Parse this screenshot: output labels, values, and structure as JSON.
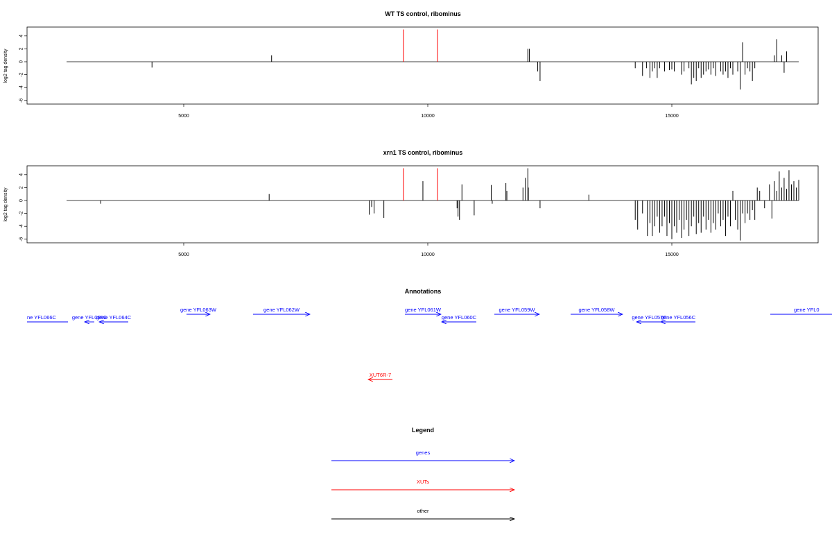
{
  "chart_data": [
    {
      "type": "bar",
      "title": "WT TS control, ribominus",
      "xlabel": "",
      "ylabel": "log2 tag density",
      "xlim": [
        2300,
        17500
      ],
      "ylim": [
        -6,
        5
      ],
      "x_ticks": [
        5000,
        10000,
        15000
      ],
      "x_tick_labels": [
        "5000",
        "10000",
        "15000"
      ],
      "y_ticks": [
        4,
        2,
        0,
        -2,
        -4,
        -6
      ],
      "y_tick_labels": [
        "4",
        "2",
        "0",
        "-2",
        "-4",
        "-6"
      ],
      "baseline": {
        "x_start": 2600,
        "x_end": 17600,
        "value": 0
      },
      "highlight_markers": [
        {
          "x": 9500,
          "value": 5,
          "color": "#ff0000"
        },
        {
          "x": 10200,
          "value": 5,
          "color": "#ff0000"
        }
      ],
      "series": [
        {
          "color": "#000000",
          "points": [
            [
              4350,
              -0.9
            ],
            [
              6800,
              1.0
            ],
            [
              12050,
              2.0
            ],
            [
              12080,
              2.0
            ],
            [
              12250,
              -1.5
            ],
            [
              12300,
              -3.0
            ],
            [
              14250,
              -1.0
            ],
            [
              14400,
              -2.2
            ],
            [
              14480,
              -1.0
            ],
            [
              14550,
              -2.5
            ],
            [
              14600,
              -1.5
            ],
            [
              14650,
              -1.0
            ],
            [
              14700,
              -2.5
            ],
            [
              14750,
              -1.0
            ],
            [
              14850,
              -1.5
            ],
            [
              14950,
              -1.3
            ],
            [
              15000,
              -1.2
            ],
            [
              15050,
              -1.5
            ],
            [
              15200,
              -2.0
            ],
            [
              15250,
              -1.5
            ],
            [
              15350,
              -1.0
            ],
            [
              15400,
              -3.5
            ],
            [
              15450,
              -2.5
            ],
            [
              15500,
              -3.0
            ],
            [
              15550,
              -1.0
            ],
            [
              15600,
              -2.5
            ],
            [
              15650,
              -2.0
            ],
            [
              15700,
              -1.5
            ],
            [
              15750,
              -1.2
            ],
            [
              15800,
              -2.0
            ],
            [
              15850,
              -1.0
            ],
            [
              15900,
              -2.2
            ],
            [
              16000,
              -1.5
            ],
            [
              16050,
              -2.0
            ],
            [
              16100,
              -1.5
            ],
            [
              16150,
              -2.5
            ],
            [
              16200,
              -1.0
            ],
            [
              16250,
              -2.0
            ],
            [
              16350,
              -1.5
            ],
            [
              16400,
              -4.3
            ],
            [
              16450,
              3.0
            ],
            [
              16500,
              -2.0
            ],
            [
              16550,
              -1.0
            ],
            [
              16600,
              -1.5
            ],
            [
              16650,
              -3.0
            ],
            [
              16700,
              -1.0
            ],
            [
              17100,
              1.0
            ],
            [
              17150,
              3.5
            ],
            [
              17250,
              1.0
            ],
            [
              17300,
              -1.7
            ],
            [
              17350,
              1.6
            ]
          ]
        }
      ]
    },
    {
      "type": "bar",
      "title": "xrn1 TS control, ribominus",
      "xlabel": "",
      "ylabel": "log2 tag density",
      "xlim": [
        2300,
        17500
      ],
      "ylim": [
        -6,
        5
      ],
      "x_ticks": [
        5000,
        10000,
        15000
      ],
      "x_tick_labels": [
        "5000",
        "10000",
        "15000"
      ],
      "y_ticks": [
        4,
        2,
        0,
        -2,
        -4,
        -6
      ],
      "y_tick_labels": [
        "4",
        "2",
        "0",
        "-2",
        "-4",
        "-6"
      ],
      "baseline": {
        "x_start": 2600,
        "x_end": 17600,
        "value": 0
      },
      "highlight_markers": [
        {
          "x": 9500,
          "value": 5,
          "color": "#ff0000"
        },
        {
          "x": 10200,
          "value": 5,
          "color": "#ff0000"
        }
      ],
      "series": [
        {
          "color": "#000000",
          "points": [
            [
              3300,
              -0.5
            ],
            [
              6750,
              1.0
            ],
            [
              8800,
              -2.2
            ],
            [
              8850,
              -1.0
            ],
            [
              8900,
              -2.0
            ],
            [
              9100,
              -2.7
            ],
            [
              9900,
              3.0
            ],
            [
              10600,
              -1.2
            ],
            [
              10620,
              -2.5
            ],
            [
              10650,
              -3.0
            ],
            [
              10700,
              2.5
            ],
            [
              10950,
              -2.3
            ],
            [
              11300,
              2.4
            ],
            [
              11320,
              -0.5
            ],
            [
              11600,
              2.7
            ],
            [
              11620,
              1.5
            ],
            [
              11950,
              2.0
            ],
            [
              12000,
              3.5
            ],
            [
              12050,
              5.0
            ],
            [
              12060,
              2.0
            ],
            [
              12300,
              -1.2
            ],
            [
              13300,
              0.9
            ],
            [
              14250,
              -3.0
            ],
            [
              14300,
              -4.5
            ],
            [
              14400,
              -2.0
            ],
            [
              14500,
              -5.5
            ],
            [
              14550,
              -3.5
            ],
            [
              14600,
              -5.5
            ],
            [
              14650,
              -4.0
            ],
            [
              14700,
              -2.5
            ],
            [
              14750,
              -5.0
            ],
            [
              14800,
              -4.0
            ],
            [
              14850,
              -2.5
            ],
            [
              14900,
              -5.5
            ],
            [
              14950,
              -3.5
            ],
            [
              15000,
              -6.0
            ],
            [
              15050,
              -4.0
            ],
            [
              15100,
              -5.0
            ],
            [
              15150,
              -3.0
            ],
            [
              15200,
              -5.8
            ],
            [
              15250,
              -4.5
            ],
            [
              15300,
              -3.0
            ],
            [
              15350,
              -5.5
            ],
            [
              15400,
              -4.0
            ],
            [
              15450,
              -2.5
            ],
            [
              15500,
              -5.2
            ],
            [
              15550,
              -3.5
            ],
            [
              15600,
              -5.0
            ],
            [
              15650,
              -2.5
            ],
            [
              15700,
              -4.5
            ],
            [
              15750,
              -3.0
            ],
            [
              15800,
              -5.0
            ],
            [
              15850,
              -3.5
            ],
            [
              15900,
              -4.5
            ],
            [
              15950,
              -2.0
            ],
            [
              16000,
              -4.0
            ],
            [
              16050,
              -3.0
            ],
            [
              16100,
              -5.5
            ],
            [
              16150,
              -2.5
            ],
            [
              16200,
              -4.0
            ],
            [
              16250,
              1.5
            ],
            [
              16300,
              -3.0
            ],
            [
              16350,
              -4.5
            ],
            [
              16400,
              -6.2
            ],
            [
              16450,
              -2.0
            ],
            [
              16500,
              -3.5
            ],
            [
              16550,
              -2.0
            ],
            [
              16600,
              -3.0
            ],
            [
              16650,
              -1.5
            ],
            [
              16700,
              -3.0
            ],
            [
              16750,
              2.0
            ],
            [
              16800,
              1.5
            ],
            [
              16900,
              -1.2
            ],
            [
              17000,
              2.5
            ],
            [
              17050,
              -2.8
            ],
            [
              17100,
              3.0
            ],
            [
              17150,
              1.5
            ],
            [
              17200,
              4.5
            ],
            [
              17250,
              2.0
            ],
            [
              17300,
              3.5
            ],
            [
              17350,
              1.8
            ],
            [
              17400,
              4.7
            ],
            [
              17450,
              2.5
            ],
            [
              17500,
              3.0
            ],
            [
              17550,
              2.0
            ],
            [
              17600,
              3.2
            ]
          ]
        }
      ]
    }
  ],
  "annotations": {
    "title": "Annotations",
    "items": [
      {
        "label": "ne YFL066C",
        "color": "#0000ff",
        "track": 0
      },
      {
        "label": "gene YFL065C",
        "color": "#0000ff",
        "track": 0
      },
      {
        "label": "gene YFL064C",
        "color": "#0000ff",
        "track": 0
      },
      {
        "label": "gene YFL063W",
        "color": "#0000ff",
        "track": 1
      },
      {
        "label": "gene YFL062W",
        "color": "#0000ff",
        "track": 1
      },
      {
        "label": "gene YFL061W",
        "color": "#0000ff",
        "track": 1
      },
      {
        "label": "gene YFL060C",
        "color": "#0000ff",
        "track": 0
      },
      {
        "label": "gene YFL059W",
        "color": "#0000ff",
        "track": 1
      },
      {
        "label": "gene YFL058W",
        "color": "#0000ff",
        "track": 1
      },
      {
        "label": "gene YFL057C",
        "color": "#0000ff",
        "track": 0
      },
      {
        "label": "gene YFL056C",
        "color": "#0000ff",
        "track": 0
      },
      {
        "label": "gene YFL0",
        "color": "#0000ff",
        "track": 1
      },
      {
        "label": "XUT6R-7",
        "color": "#ff0000",
        "track": 2
      }
    ]
  },
  "legend": {
    "title": "Legend",
    "items": [
      {
        "label": "genes",
        "color": "#0000ff"
      },
      {
        "label": "XUTs",
        "color": "#ff0000"
      },
      {
        "label": "other",
        "color": "#000000"
      }
    ]
  }
}
